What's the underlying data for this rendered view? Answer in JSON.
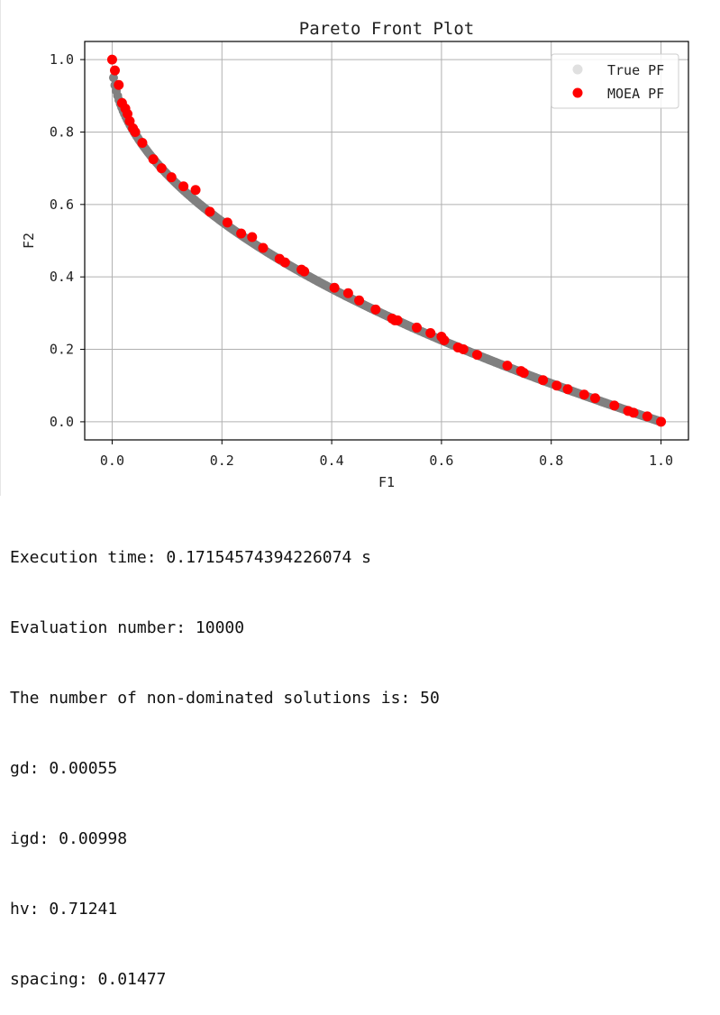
{
  "chart_data": {
    "type": "scatter",
    "title": "Pareto Front Plot",
    "xlabel": "F1",
    "ylabel": "F2",
    "xlim": [
      -0.05,
      1.05
    ],
    "ylim": [
      -0.05,
      1.05
    ],
    "xticks": [
      0.0,
      0.2,
      0.4,
      0.6,
      0.8,
      1.0
    ],
    "yticks": [
      0.0,
      0.2,
      0.4,
      0.6,
      0.8,
      1.0
    ],
    "xtick_labels": [
      "0.0",
      "0.2",
      "0.4",
      "0.6",
      "0.8",
      "1.0"
    ],
    "ytick_labels": [
      "0.0",
      "0.2",
      "0.4",
      "0.6",
      "0.8",
      "1.0"
    ],
    "grid": true,
    "legend_position": "top-right",
    "series": [
      {
        "name": "True PF",
        "color": "#808080",
        "legend_color": "#e0e0e0",
        "marker": "circle",
        "function": "f2 = 1 - sqrt(f1)",
        "x_range": [
          0.0,
          1.0
        ]
      },
      {
        "name": "MOEA PF",
        "color": "#ff0000",
        "marker": "circle",
        "x": [
          0.0,
          0.005,
          0.012,
          0.018,
          0.024,
          0.028,
          0.032,
          0.038,
          0.042,
          0.055,
          0.075,
          0.09,
          0.108,
          0.13,
          0.152,
          0.178,
          0.21,
          0.235,
          0.255,
          0.275,
          0.305,
          0.315,
          0.345,
          0.35,
          0.405,
          0.43,
          0.45,
          0.48,
          0.51,
          0.515,
          0.52,
          0.555,
          0.58,
          0.6,
          0.605,
          0.63,
          0.64,
          0.665,
          0.72,
          0.745,
          0.75,
          0.785,
          0.81,
          0.83,
          0.86,
          0.88,
          0.915,
          0.94,
          0.95,
          0.975,
          1.0
        ],
        "y": [
          1.0,
          0.97,
          0.93,
          0.88,
          0.865,
          0.85,
          0.83,
          0.81,
          0.8,
          0.77,
          0.725,
          0.7,
          0.675,
          0.65,
          0.64,
          0.58,
          0.55,
          0.52,
          0.51,
          0.48,
          0.45,
          0.44,
          0.42,
          0.415,
          0.37,
          0.355,
          0.335,
          0.31,
          0.285,
          0.28,
          0.28,
          0.26,
          0.245,
          0.235,
          0.225,
          0.205,
          0.2,
          0.185,
          0.155,
          0.14,
          0.135,
          0.115,
          0.1,
          0.09,
          0.075,
          0.065,
          0.045,
          0.03,
          0.025,
          0.015,
          0.0
        ]
      }
    ]
  },
  "console": {
    "lines": [
      "Execution time: 0.17154574394226074 s",
      "Evaluation number: 10000",
      "The number of non-dominated solutions is: 50",
      "gd: 0.00055",
      "igd: 0.00998",
      "hv: 0.71241",
      "spacing: 0.01477"
    ]
  }
}
